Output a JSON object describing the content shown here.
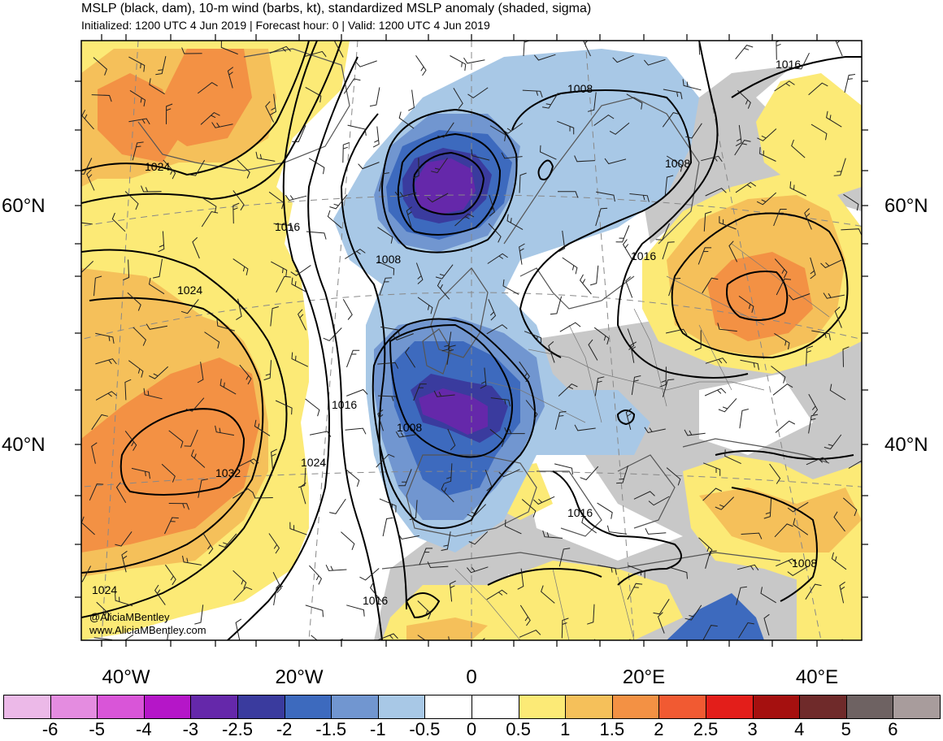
{
  "header": {
    "title": "MSLP (black, dam), 10-m wind (barbs, kt), standardized MSLP anomaly (shaded, sigma)",
    "subtitle": "Initialized: 1200 UTC 4 Jun 2019 | Forecast hour: 0 | Valid: 1200 UTC 4 Jun 2019"
  },
  "latitude_labels": [
    "60°N",
    "40°N"
  ],
  "longitude_labels": [
    "40°W",
    "20°W",
    "0",
    "20°E",
    "40°E"
  ],
  "contour_labels": [
    "1024",
    "1024",
    "1032",
    "1024",
    "1016",
    "1024",
    "1008",
    "1016",
    "1008",
    "1008",
    "1016",
    "1016",
    "1008",
    "1016",
    "1008",
    "1016"
  ],
  "credit": {
    "handle": "@AliciaMBentley",
    "website": "www.AliciaMBentley.com"
  },
  "colorbar": {
    "tick_labels": [
      "-6",
      "-5",
      "-4",
      "-3",
      "-2.5",
      "-2",
      "-1.5",
      "-1",
      "-0.5",
      "0",
      "0.5",
      "1",
      "1.5",
      "2",
      "2.5",
      "3",
      "4",
      "5",
      "6"
    ],
    "colors": [
      "#ecb9e8",
      "#e48ce0",
      "#d955d8",
      "#b516c8",
      "#6528aa",
      "#3a3b9e",
      "#3d6abe",
      "#7196d0",
      "#a8c8e6",
      "#ffffff",
      "#ffffff",
      "#fcea76",
      "#f5c05a",
      "#f39144",
      "#f15a32",
      "#e31e1a",
      "#a5100f",
      "#6f2a2a",
      "#6e6262",
      "#a89c9c"
    ]
  },
  "map_colors": {
    "land_gray": "#c8c8c8",
    "neg_05": "#a8c8e6",
    "neg_10": "#7196d0",
    "neg_15": "#3d6abe",
    "neg_20": "#3a3b9e",
    "neg_25": "#6528aa",
    "pos_05": "#fcea76",
    "pos_10": "#f5c05a",
    "pos_15": "#f39144"
  }
}
